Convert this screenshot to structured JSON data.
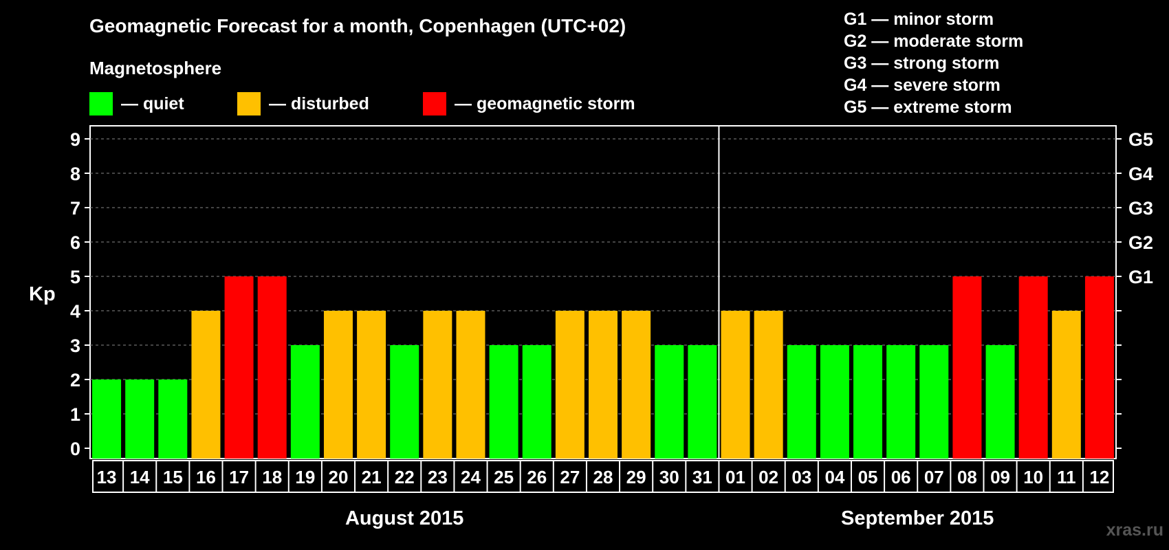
{
  "title": "Geomagnetic Forecast for a month, Copenhagen (UTC+02)",
  "magnetosphere_label": "Magnetosphere",
  "legend": [
    {
      "label": "— quiet",
      "color": "#00FF00"
    },
    {
      "label": "— disturbed",
      "color": "#FFC000"
    },
    {
      "label": "— geomagnetic storm",
      "color": "#FF0000"
    }
  ],
  "storm_levels": [
    "G1 — minor storm",
    "G2 — moderate storm",
    "G3 — strong storm",
    "G4 — severe storm",
    "G5 — extreme storm"
  ],
  "watermark": "xras.ru",
  "colors": {
    "quiet": "#00FF00",
    "disturbed": "#FFC000",
    "storm": "#FF0000",
    "background": "#000000",
    "grid": "#888888"
  },
  "chart_data": {
    "type": "bar",
    "ylabel": "Kp",
    "ylim": [
      0,
      9
    ],
    "yticks": [
      0,
      1,
      2,
      3,
      4,
      5,
      6,
      7,
      8,
      9
    ],
    "right_axis_labels": [
      {
        "value": 5,
        "label": "G1"
      },
      {
        "value": 6,
        "label": "G2"
      },
      {
        "value": 7,
        "label": "G3"
      },
      {
        "value": 8,
        "label": "G4"
      },
      {
        "value": 9,
        "label": "G5"
      }
    ],
    "grid": "horizontal dashed",
    "categories": [
      "13",
      "14",
      "15",
      "16",
      "17",
      "18",
      "19",
      "20",
      "21",
      "22",
      "23",
      "24",
      "25",
      "26",
      "27",
      "28",
      "29",
      "30",
      "31",
      "01",
      "02",
      "03",
      "04",
      "05",
      "06",
      "07",
      "08",
      "09",
      "10",
      "11",
      "12"
    ],
    "values": [
      2,
      2,
      2,
      4,
      5,
      5,
      3,
      4,
      4,
      3,
      4,
      4,
      3,
      3,
      4,
      4,
      4,
      3,
      3,
      4,
      4,
      3,
      3,
      3,
      3,
      3,
      5,
      3,
      5,
      4,
      5
    ],
    "months": [
      {
        "label": "August 2015",
        "start": 0,
        "end": 18
      },
      {
        "label": "September 2015",
        "start": 19,
        "end": 30
      }
    ]
  }
}
